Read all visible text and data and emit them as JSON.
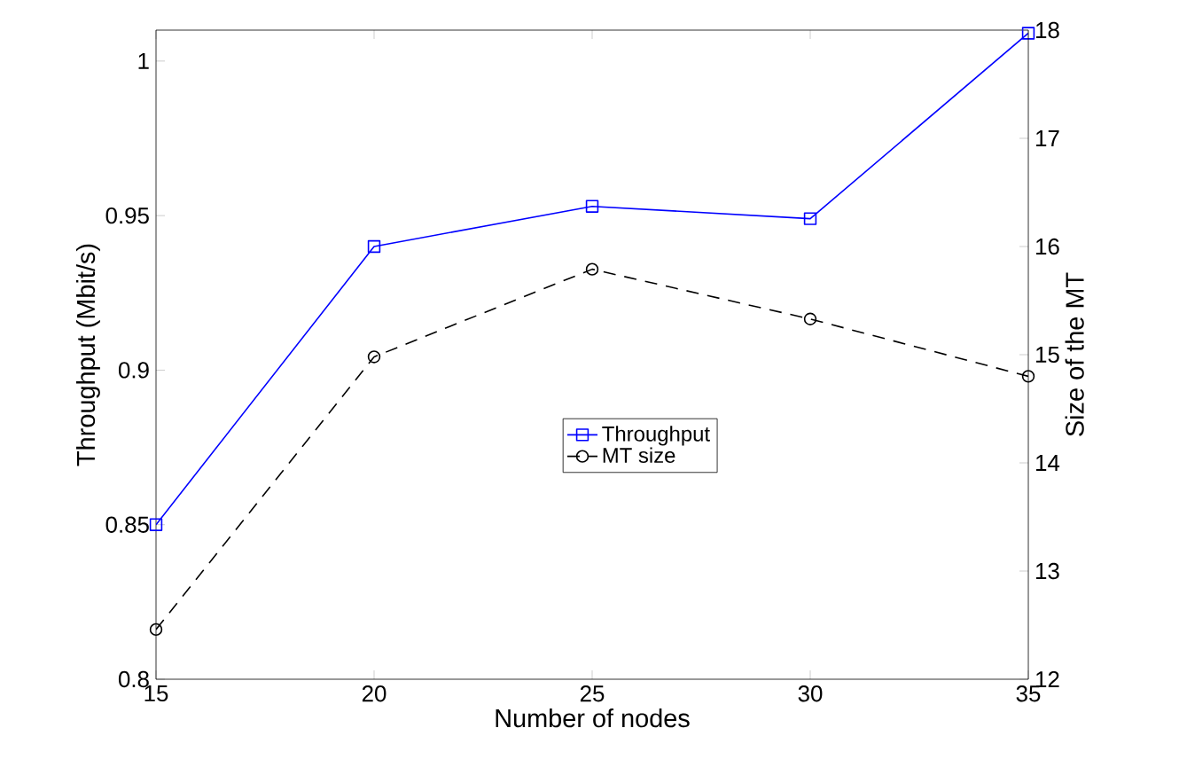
{
  "chart_data": {
    "type": "line",
    "xlabel": "Number of nodes",
    "ylabel": "Throughput (Mbit/s)",
    "y2label": "Size of the MT",
    "x": [
      15,
      20,
      25,
      30,
      35
    ],
    "series": [
      {
        "name": "Throughput",
        "color": "#0000ff",
        "marker": "square",
        "line_style": "solid",
        "values": [
          0.85,
          0.94,
          0.953,
          0.949,
          1.009
        ]
      },
      {
        "name": "MT size",
        "color": "#000000",
        "marker": "circle",
        "line_style": "dashed",
        "axis": "y2",
        "values": [
          12.46,
          14.98,
          15.79,
          15.33,
          14.8
        ]
      }
    ],
    "xlim": [
      15,
      35
    ],
    "xticks": [
      15,
      20,
      25,
      30,
      35
    ],
    "ylim": [
      0.8,
      1.01
    ],
    "yticks": [
      0.8,
      0.85,
      0.9,
      0.95,
      1
    ],
    "y2lim": [
      12,
      18
    ],
    "y2ticks": [
      12,
      13,
      14,
      15,
      16,
      17,
      18
    ],
    "grid": false,
    "legend": "center"
  }
}
